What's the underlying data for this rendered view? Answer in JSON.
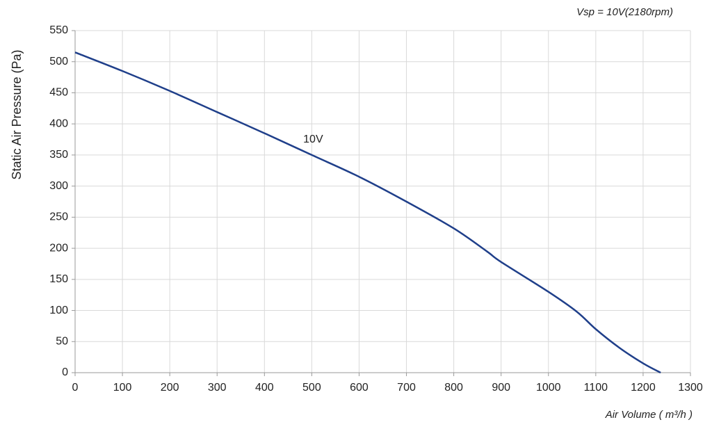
{
  "chart_data": {
    "type": "line",
    "subtitle": "Vsp = 10V(2180rpm)",
    "x_label": "Air Volume ( m³/h )",
    "y_label": "Static Air Pressure  (Pa)",
    "x": [
      0,
      100,
      200,
      300,
      400,
      500,
      600,
      700,
      800,
      870,
      900,
      1000,
      1060,
      1100,
      1150,
      1200,
      1237
    ],
    "series": [
      {
        "name": "10V",
        "color": "#1f3f8a",
        "values": [
          515,
          485,
          453,
          419,
          385,
          350,
          315,
          275,
          232,
          195,
          178,
          130,
          98,
          70,
          40,
          15,
          0
        ]
      }
    ],
    "xlim": [
      0,
      1300
    ],
    "xticks": [
      0,
      100,
      200,
      300,
      400,
      500,
      600,
      700,
      800,
      900,
      1000,
      1100,
      1200,
      1300
    ],
    "ylim": [
      0,
      550
    ],
    "yticks": [
      0,
      50,
      100,
      150,
      200,
      250,
      300,
      350,
      400,
      450,
      500,
      550
    ],
    "grid": true
  }
}
